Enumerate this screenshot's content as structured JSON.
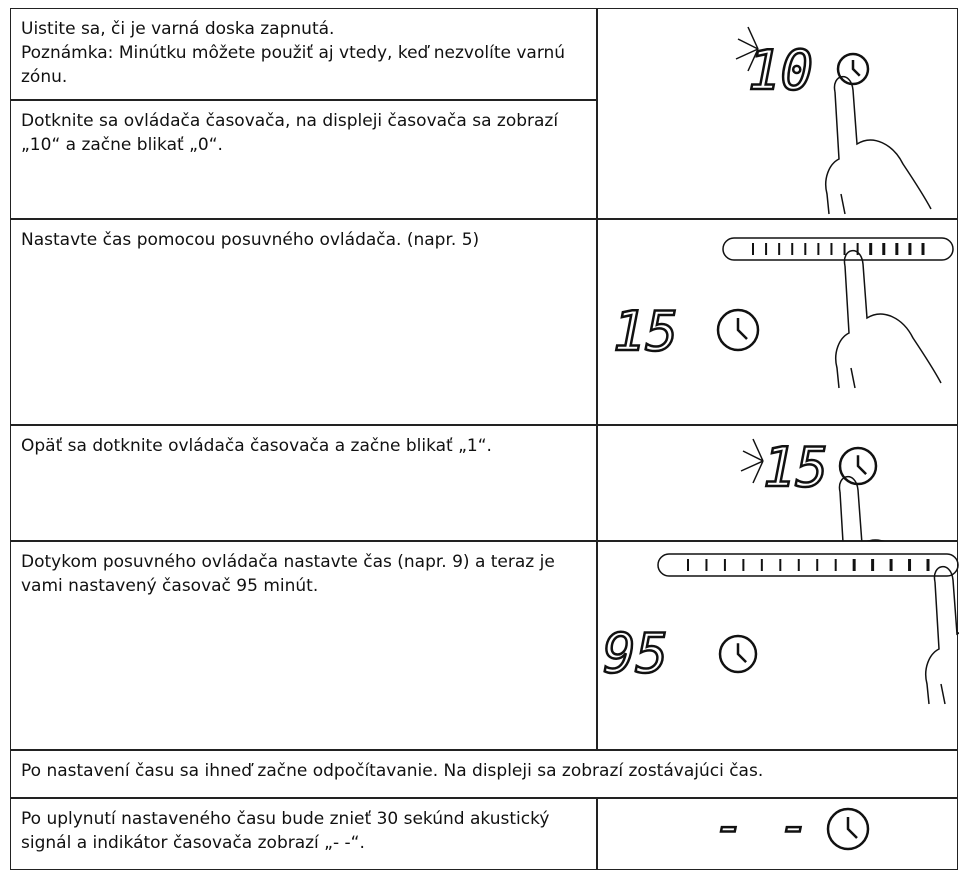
{
  "steps": [
    {
      "text": "Uistite sa, či je varná doska zapnutá.",
      "note": "Poznámka: Minútku môžete použiť aj vtedy, keď nezvolíte varnú zónu."
    },
    {
      "text": "Dotknite sa ovládača časovača, na displeji časovača sa zobrazí „10“ a začne blikať „0“.",
      "display": "10"
    },
    {
      "text": "Nastavte čas pomocou posuvného ovládača. (napr. 5)",
      "display": "15"
    },
    {
      "text": "Opäť sa dotknite ovládača časovača a začne blikať „1“.",
      "display": "15"
    },
    {
      "text": "Dotykom posuvného ovládača nastavte čas (napr. 9) a teraz je vami nastavený časovač 95 minút.",
      "display": "95"
    },
    {
      "text": "Po nastavení času sa ihneď začne odpočítavanie. Na displeji sa zobrazí zostávajúci čas."
    },
    {
      "text": "Po uplynutí nastaveného času bude znieť 30 sekúnd akustický signál a indikátor časovača zobrazí „- -“.",
      "display": "- -"
    }
  ]
}
